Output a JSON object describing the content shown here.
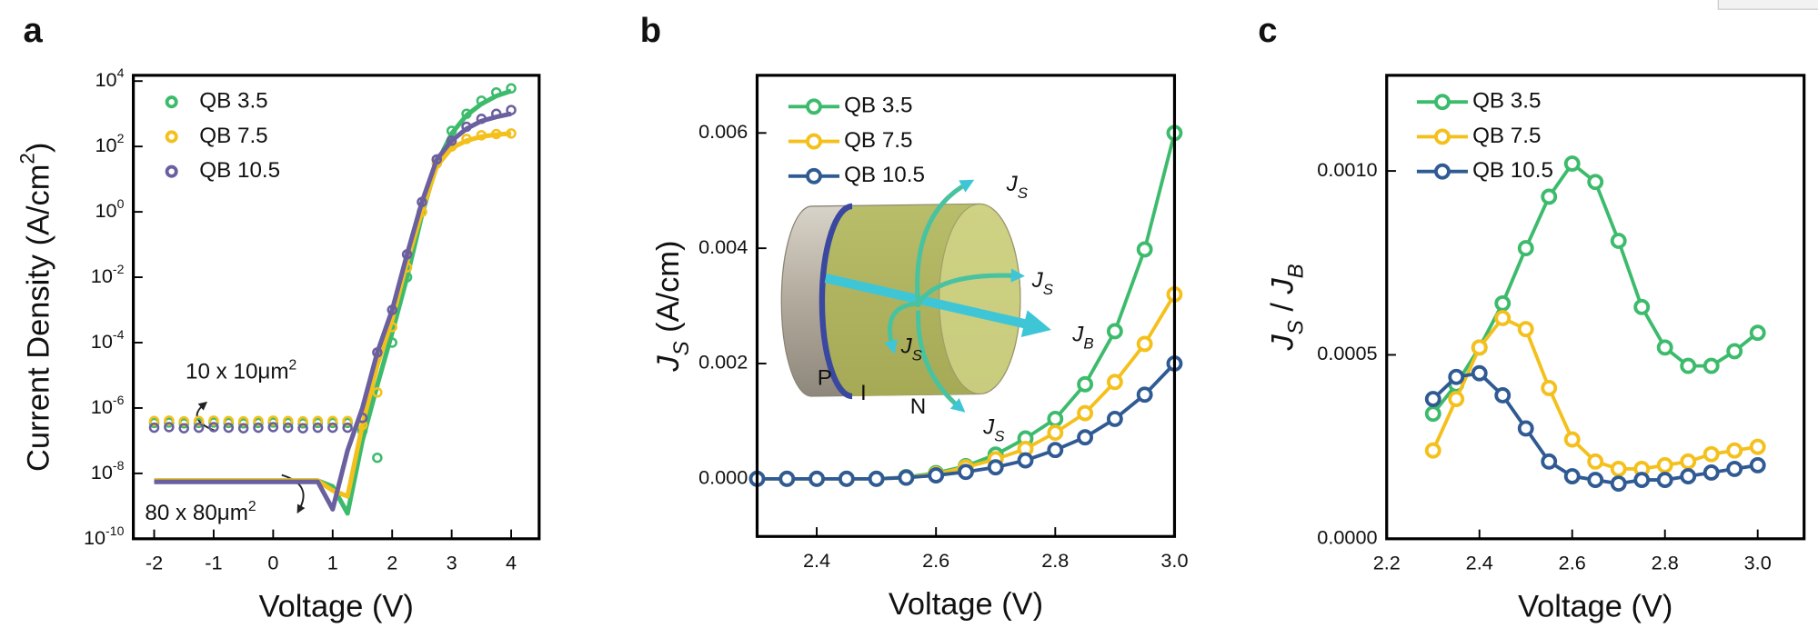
{
  "chart_data": [
    {
      "type": "line",
      "panel_label": "a",
      "xlabel": "Voltage (V)",
      "ylabel": "Current Density (A/cm^2)",
      "log_y": true,
      "markers_only": true,
      "legend": "upper left",
      "xlim": [
        -2.35,
        4.47
      ],
      "ylim": [
        1e-10,
        15000
      ],
      "xticks": [
        -2,
        -1,
        0,
        1,
        2,
        3,
        4
      ],
      "yticks": [
        {
          "value": 10000.0,
          "label": "10^4"
        },
        {
          "value": 100.0,
          "label": "10^2"
        },
        {
          "value": 1,
          "label": "10^0"
        },
        {
          "value": 0.01,
          "label": "10^-2"
        },
        {
          "value": 0.0001,
          "label": "10^-4"
        },
        {
          "value": 1e-06,
          "label": "10^-6"
        },
        {
          "value": 1e-08,
          "label": "10^-8"
        },
        {
          "value": 1e-10,
          "label": "10^-10"
        }
      ],
      "x": [
        -2,
        -1.75,
        -1.5,
        -1.25,
        -1,
        -0.75,
        -0.5,
        -0.25,
        0,
        0.25,
        0.5,
        0.75,
        1,
        1.25,
        1.5,
        1.75,
        2,
        2.25,
        2.5,
        2.75,
        3,
        3.25,
        3.5,
        3.75,
        4
      ],
      "series": [
        {
          "name": "QB 3.5",
          "color": "#3dbb6c",
          "values": [
            3.5e-07,
            3.6e-07,
            3.4e-07,
            3.5e-07,
            3.6e-07,
            3.5e-07,
            3.4e-07,
            3.5e-07,
            3.6e-07,
            3.5e-07,
            3.4e-07,
            3.5e-07,
            3.5e-07,
            3.5e-07,
            2e-07,
            3e-08,
            0.0001,
            0.01,
            1,
            40,
            300,
            1000,
            2500,
            4500,
            6000
          ],
          "values_large": [
            6e-09,
            6e-09,
            6e-09,
            6e-09,
            6e-09,
            6e-09,
            6e-09,
            6e-09,
            6e-09,
            6e-09,
            6e-09,
            6e-09,
            4e-09,
            6e-10,
            1e-07,
            5e-06,
            0.0002,
            0.01,
            0.8,
            30,
            250,
            900,
            2000,
            3500,
            5000
          ]
        },
        {
          "name": "QB 7.5",
          "color": "#f4c01c",
          "values": [
            4e-07,
            4.1e-07,
            3.9e-07,
            4e-07,
            4.1e-07,
            4e-07,
            3.9e-07,
            4e-07,
            4.1e-07,
            4e-07,
            3.9e-07,
            4e-07,
            4e-07,
            4e-07,
            3e-07,
            3e-06,
            0.0003,
            0.02,
            1,
            30,
            100,
            170,
            220,
            240,
            250
          ],
          "values_large": [
            6e-09,
            6e-09,
            6e-09,
            6e-09,
            6e-09,
            6e-09,
            6e-09,
            6e-09,
            6e-09,
            6e-09,
            6e-09,
            6e-09,
            3e-09,
            2e-09,
            3e-07,
            2e-05,
            0.0005,
            0.03,
            1,
            25,
            90,
            150,
            200,
            230,
            250
          ]
        },
        {
          "name": "QB 10.5",
          "color": "#6a5f9f",
          "values": [
            2.5e-07,
            2.6e-07,
            2.4e-07,
            2.5e-07,
            2.6e-07,
            2.5e-07,
            2.4e-07,
            2.5e-07,
            2.6e-07,
            2.5e-07,
            2.4e-07,
            2.5e-07,
            2.5e-07,
            2.5e-07,
            5e-07,
            5e-05,
            0.001,
            0.05,
            2,
            40,
            150,
            400,
            700,
            1000,
            1300
          ],
          "values_large": [
            5.5e-09,
            5.5e-09,
            5.5e-09,
            5.5e-09,
            5.5e-09,
            5.5e-09,
            5.5e-09,
            5.5e-09,
            5.5e-09,
            5.5e-09,
            5.5e-09,
            5.5e-09,
            8e-10,
            5e-08,
            1e-06,
            5e-05,
            0.001,
            0.05,
            2,
            40,
            150,
            350,
            600,
            800,
            1000
          ]
        }
      ],
      "annotations": [
        "10 x 10μm^2",
        "80 x 80μm^2"
      ]
    },
    {
      "type": "line",
      "panel_label": "b",
      "xlabel": "Voltage (V)",
      "ylabel": "J_S (A/cm)",
      "legend": "upper left",
      "xlim": [
        2.3,
        3.0
      ],
      "ylim": [
        -0.001,
        0.007
      ],
      "xticks": [
        2.4,
        2.6,
        2.8,
        {
          "value": 3.0,
          "label": "3.0"
        }
      ],
      "yticks": [
        {
          "value": 0,
          "label": "0.000"
        },
        {
          "value": 0.002,
          "label": "0.002"
        },
        {
          "value": 0.004,
          "label": "0.004"
        },
        {
          "value": 0.006,
          "label": "0.006"
        }
      ],
      "x": [
        2.3,
        2.35,
        2.4,
        2.45,
        2.5,
        2.55,
        2.6,
        2.65,
        2.7,
        2.75,
        2.8,
        2.85,
        2.9,
        2.95,
        3.0
      ],
      "series": [
        {
          "name": "QB 3.5",
          "color": "#3dbb6c",
          "values": [
            0,
            0,
            0,
            0,
            0,
            3e-05,
            0.0001,
            0.00022,
            0.00042,
            0.0007,
            0.00104,
            0.00164,
            0.00256,
            0.00398,
            0.006
          ]
        },
        {
          "name": "QB 7.5",
          "color": "#f4c01c",
          "values": [
            0,
            0,
            0,
            0,
            0,
            2e-05,
            8e-05,
            0.0002,
            0.00034,
            0.00052,
            0.0008,
            0.00114,
            0.00168,
            0.00234,
            0.0032
          ]
        },
        {
          "name": "QB 10.5",
          "color": "#2f5a93",
          "values": [
            0,
            0,
            0,
            0,
            0,
            2e-05,
            6e-05,
            0.00012,
            0.0002,
            0.00032,
            0.0005,
            0.00072,
            0.00104,
            0.00146,
            0.002
          ]
        }
      ],
      "inset_labels": [
        "J_S",
        "J_S",
        "J_B",
        "J_S",
        "J_S",
        "P",
        "I",
        "N"
      ]
    },
    {
      "type": "line",
      "panel_label": "c",
      "xlabel": "Voltage (V)",
      "ylabel": "J_S / J_B",
      "legend": "upper left",
      "xlim": [
        2.2,
        3.1
      ],
      "ylim": [
        0,
        0.00126
      ],
      "xticks": [
        2.2,
        2.4,
        2.6,
        2.8,
        {
          "value": 3.0,
          "label": "3.0"
        }
      ],
      "yticks": [
        {
          "value": 0,
          "label": "0.0000"
        },
        {
          "value": 0.0005,
          "label": "0.0005"
        },
        {
          "value": 0.001,
          "label": "0.0010"
        }
      ],
      "x": [
        2.3,
        2.35,
        2.4,
        2.45,
        2.5,
        2.55,
        2.6,
        2.65,
        2.7,
        2.75,
        2.8,
        2.85,
        2.9,
        2.95,
        3.0
      ],
      "series": [
        {
          "name": "QB 3.5",
          "color": "#3dbb6c",
          "values": [
            0.00034,
            0.00042,
            0.00052,
            0.00064,
            0.00079,
            0.00093,
            0.00102,
            0.00097,
            0.00081,
            0.00063,
            0.00052,
            0.00047,
            0.00047,
            0.00051,
            0.00056
          ]
        },
        {
          "name": "QB 7.5",
          "color": "#f4c01c",
          "values": [
            0.00024,
            0.00038,
            0.00052,
            0.0006,
            0.00057,
            0.00041,
            0.00027,
            0.00021,
            0.00019,
            0.00019,
            0.0002,
            0.00021,
            0.00023,
            0.00024,
            0.00025
          ]
        },
        {
          "name": "QB 10.5",
          "color": "#2f5a93",
          "values": [
            0.00038,
            0.00044,
            0.00045,
            0.00039,
            0.0003,
            0.00021,
            0.00017,
            0.00016,
            0.00015,
            0.00016,
            0.00016,
            0.00017,
            0.00018,
            0.00019,
            0.0002
          ]
        }
      ]
    }
  ]
}
